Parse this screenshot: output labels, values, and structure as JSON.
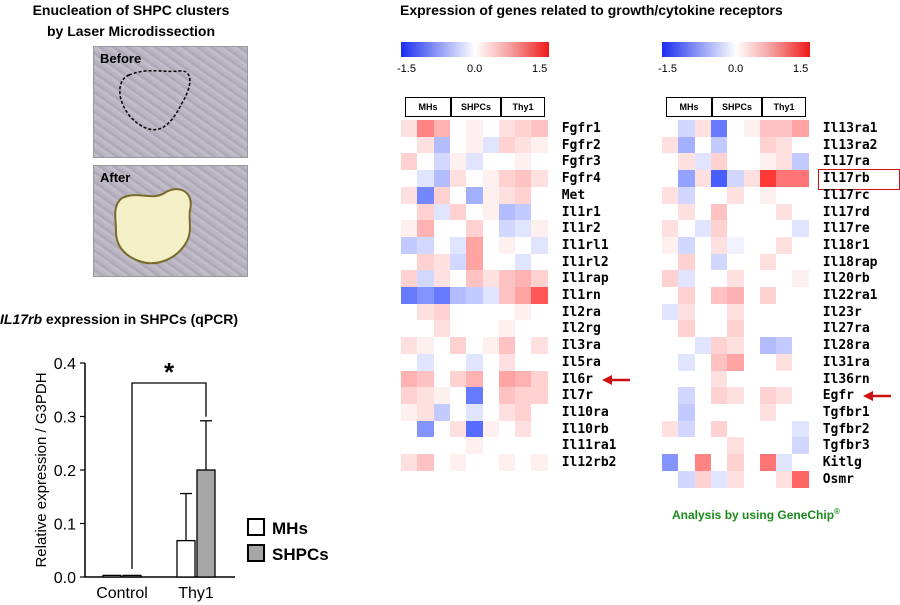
{
  "left_panel": {
    "title_line1": "Enucleation of SHPC clusters",
    "title_line2": "by Laser Microdissection",
    "before_label": "Before",
    "after_label": "After"
  },
  "qpcr": {
    "title_gene": "IL17rb",
    "title_rest": " expression in SHPCs (qPCR)",
    "significance": "*"
  },
  "chart_data": {
    "type": "bar",
    "categories": [
      "Control",
      "Thy1"
    ],
    "series": [
      {
        "name": "MHs",
        "values": [
          0.003,
          0.068
        ],
        "error": [
          0.0,
          0.088
        ],
        "color": "#ffffff"
      },
      {
        "name": "SHPCs",
        "values": [
          0.003,
          0.2
        ],
        "error": [
          0.0,
          0.092
        ],
        "color": "#a6a6a6"
      }
    ],
    "ylabel": "Relative expression / G3PDH",
    "ylim": [
      0,
      0.4
    ],
    "yticks": [
      "0.0",
      "0.1",
      "0.2",
      "0.3",
      "0.4"
    ],
    "legend": "right"
  },
  "heatmap": {
    "title": "Expression of genes related to growth/cytokine receptors",
    "scale_min": "-1.5",
    "scale_mid": "0.0",
    "scale_max": "1.5",
    "columns": [
      "MHs",
      "SHPCs",
      "Thy1"
    ],
    "left_genes": [
      "Fgfr1",
      "Fgfr2",
      "Fgfr3",
      "Fgfr4",
      "Met",
      "Il1r1",
      "Il1r2",
      "Il1rl1",
      "Il1rl2",
      "Il1rap",
      "Il1rn",
      "Il2ra",
      "Il2rg",
      "Il3ra",
      "Il5ra",
      "Il6r",
      "Il7r",
      "Il10ra",
      "Il10rb",
      "Il11ra1",
      "Il12rb2"
    ],
    "right_genes": [
      "Il13ra1",
      "Il13ra2",
      "Il17ra",
      "Il17rb",
      "Il17rc",
      "Il17rd",
      "Il17re",
      "Il18r1",
      "Il18rap",
      "Il20rb",
      "Il22ra1",
      "Il23r",
      "Il27ra",
      "Il28ra",
      "Il31ra",
      "Il36rn",
      "Egfr",
      "Tgfbr1",
      "Tgfbr2",
      "Tgfbr3",
      "Kitlg",
      "Osmr"
    ],
    "left_values": [
      [
        0.2,
        0.8,
        0.5,
        0.0,
        0.1,
        0.0,
        0.2,
        0.3,
        0.4
      ],
      [
        0.0,
        0.2,
        -0.5,
        0.0,
        0.1,
        -0.2,
        0.3,
        0.2,
        0.1
      ],
      [
        0.3,
        0.0,
        -0.3,
        0.1,
        -0.2,
        0.0,
        0.0,
        0.1,
        0.0
      ],
      [
        0.0,
        -0.2,
        -0.5,
        0.2,
        0.0,
        0.1,
        0.3,
        0.4,
        0.2
      ],
      [
        0.2,
        -0.9,
        0.3,
        0.0,
        -0.6,
        0.1,
        0.2,
        0.3,
        0.0
      ],
      [
        0.0,
        0.3,
        -0.2,
        0.3,
        0.0,
        0.1,
        -0.5,
        -0.4,
        0.0
      ],
      [
        0.1,
        0.5,
        0.0,
        0.0,
        0.3,
        0.0,
        -0.3,
        -0.2,
        0.1
      ],
      [
        -0.4,
        -0.3,
        0.0,
        -0.2,
        0.6,
        0.0,
        0.1,
        0.0,
        -0.2
      ],
      [
        0.0,
        0.3,
        0.2,
        -0.3,
        0.6,
        0.0,
        0.0,
        -0.2,
        0.0
      ],
      [
        0.3,
        -0.3,
        0.2,
        0.0,
        0.4,
        0.2,
        0.4,
        0.5,
        0.3
      ],
      [
        -1.0,
        -0.8,
        -1.0,
        -0.5,
        -0.4,
        -0.2,
        0.4,
        0.6,
        1.1
      ],
      [
        0.0,
        0.2,
        0.3,
        0.0,
        0.0,
        0.0,
        0.0,
        0.1,
        0.0
      ],
      [
        0.0,
        0.0,
        0.2,
        0.0,
        0.0,
        0.0,
        0.1,
        0.0,
        0.0
      ],
      [
        0.2,
        0.1,
        0.0,
        0.3,
        0.0,
        0.1,
        0.4,
        0.0,
        0.2
      ],
      [
        0.0,
        -0.2,
        0.0,
        0.0,
        -0.2,
        0.0,
        0.2,
        0.0,
        0.0
      ],
      [
        0.5,
        0.4,
        0.0,
        0.3,
        0.5,
        0.0,
        0.6,
        0.5,
        0.3
      ],
      [
        0.3,
        0.2,
        0.1,
        0.0,
        -1.0,
        0.0,
        0.4,
        0.3,
        0.3
      ],
      [
        0.1,
        0.2,
        -0.4,
        0.0,
        -0.2,
        0.0,
        0.2,
        0.3,
        0.0
      ],
      [
        0.0,
        -0.8,
        0.0,
        0.2,
        -1.1,
        0.1,
        0.0,
        0.2,
        0.0
      ],
      [
        0.0,
        0.0,
        0.0,
        0.0,
        0.1,
        0.0,
        0.0,
        0.0,
        0.0
      ],
      [
        0.2,
        0.4,
        0.0,
        0.1,
        0.0,
        0.0,
        0.1,
        0.0,
        0.1
      ]
    ],
    "right_values": [
      [
        0.0,
        -0.3,
        0.2,
        -1.0,
        0.0,
        0.1,
        0.4,
        0.4,
        0.6
      ],
      [
        0.2,
        -0.6,
        0.0,
        -0.4,
        0.0,
        0.0,
        0.3,
        0.2,
        0.0
      ],
      [
        0.0,
        0.2,
        -0.2,
        0.3,
        0.0,
        0.0,
        0.1,
        0.2,
        -0.4
      ],
      [
        0.0,
        -0.7,
        0.2,
        -1.2,
        -0.3,
        0.2,
        1.3,
        0.9,
        0.9
      ],
      [
        0.2,
        -0.3,
        0.0,
        0.0,
        0.2,
        0.0,
        0.1,
        0.0,
        0.0
      ],
      [
        0.0,
        0.2,
        0.0,
        0.4,
        0.0,
        0.0,
        0.0,
        0.2,
        0.0
      ],
      [
        0.2,
        0.0,
        -0.2,
        0.3,
        0.0,
        0.0,
        0.0,
        0.0,
        -0.2
      ],
      [
        0.1,
        -0.3,
        0.0,
        0.2,
        -0.1,
        0.0,
        0.0,
        0.2,
        0.0
      ],
      [
        0.0,
        0.3,
        0.0,
        -0.3,
        0.0,
        0.0,
        0.2,
        0.0,
        0.0
      ],
      [
        0.3,
        -0.2,
        0.0,
        0.0,
        0.2,
        0.0,
        0.0,
        0.0,
        0.1
      ],
      [
        0.0,
        0.3,
        0.0,
        0.4,
        0.5,
        0.0,
        0.3,
        0.0,
        0.0
      ],
      [
        -0.2,
        0.2,
        0.0,
        0.0,
        0.2,
        0.0,
        0.0,
        0.0,
        0.0
      ],
      [
        0.0,
        0.3,
        0.0,
        0.0,
        0.3,
        0.0,
        0.0,
        0.0,
        0.0
      ],
      [
        0.0,
        0.0,
        -0.2,
        0.3,
        0.2,
        0.0,
        -0.5,
        -0.4,
        0.0
      ],
      [
        0.0,
        -0.2,
        0.0,
        0.4,
        0.6,
        0.0,
        0.0,
        0.2,
        0.0
      ],
      [
        0.0,
        0.0,
        0.0,
        0.2,
        0.0,
        0.0,
        0.0,
        0.0,
        0.0
      ],
      [
        0.0,
        -0.3,
        0.0,
        0.3,
        0.2,
        0.0,
        0.3,
        0.2,
        0.0
      ],
      [
        0.0,
        -0.4,
        0.0,
        0.0,
        0.0,
        0.0,
        0.2,
        0.0,
        0.0
      ],
      [
        0.2,
        -0.3,
        0.0,
        0.3,
        0.0,
        0.0,
        0.0,
        0.0,
        -0.2
      ],
      [
        0.0,
        0.0,
        0.0,
        0.0,
        0.2,
        0.0,
        0.0,
        0.0,
        -0.3
      ],
      [
        -0.8,
        0.0,
        0.8,
        0.0,
        0.3,
        0.0,
        0.9,
        -0.2,
        0.0
      ],
      [
        0.0,
        -0.3,
        0.3,
        -0.2,
        0.2,
        0.0,
        0.0,
        0.2,
        1.0
      ]
    ],
    "highlight_gene": "Il17rb",
    "arrow_genes": [
      "Il6r",
      "Egfr"
    ]
  },
  "footer": {
    "analysis_text": "Analysis by using GeneChip",
    "registered_mark": "®"
  },
  "colors": {
    "accent_red": "#cc1111",
    "footer_green": "#1a8a1a",
    "bar_gray": "#a6a6a6"
  }
}
